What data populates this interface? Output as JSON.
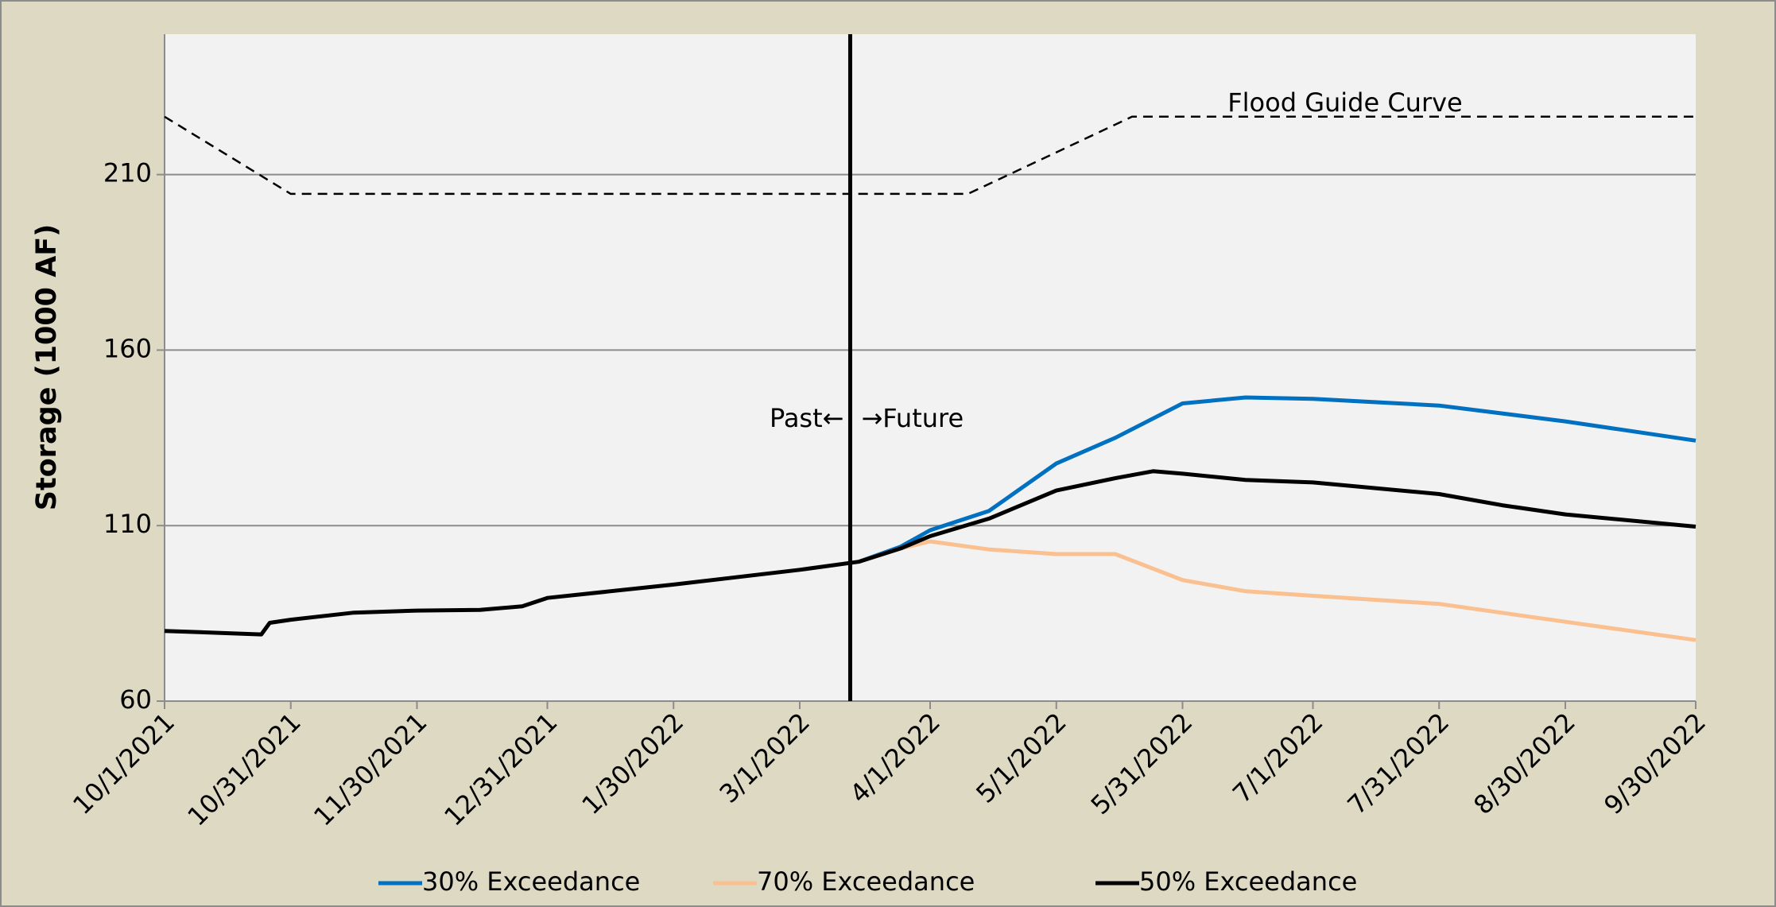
{
  "chart_data": {
    "type": "line",
    "ylabel": "Storage (1000 AF)",
    "xlim": [
      "10/1/2021",
      "9/30/2022"
    ],
    "xticks": [
      "10/1/2021",
      "10/31/2021",
      "11/30/2021",
      "12/31/2021",
      "1/30/2022",
      "3/1/2022",
      "4/1/2022",
      "5/1/2022",
      "5/31/2022",
      "7/1/2022",
      "7/31/2022",
      "8/30/2022",
      "9/30/2022"
    ],
    "ylim": [
      60,
      250
    ],
    "yticks": [
      60,
      110,
      160,
      210
    ],
    "grid": true,
    "legend": "bottom",
    "series": [
      {
        "name": "30% Exceedance",
        "color": "#0070c0",
        "x": [
          "3/15/2022",
          "3/25/2022",
          "4/1/2022",
          "4/15/2022",
          "5/1/2022",
          "5/15/2022",
          "5/31/2022",
          "6/15/2022",
          "7/1/2022",
          "7/31/2022",
          "8/30/2022",
          "9/30/2022"
        ],
        "values": [
          99.7,
          104,
          108.7,
          114.2,
          127.7,
          135,
          144.8,
          146.5,
          146.1,
          144.2,
          139.7,
          134.2
        ]
      },
      {
        "name": "70% Exceedance",
        "color": "#fac090",
        "x": [
          "3/15/2022",
          "3/25/2022",
          "4/1/2022",
          "4/15/2022",
          "5/1/2022",
          "5/15/2022",
          "5/31/2022",
          "6/15/2022",
          "7/1/2022",
          "7/31/2022",
          "8/30/2022",
          "9/30/2022"
        ],
        "values": [
          99.7,
          103.5,
          105.5,
          103.2,
          101.9,
          101.9,
          94.5,
          91.3,
          90,
          87.7,
          82.6,
          77.4
        ]
      },
      {
        "name": "50% Exceedance",
        "color": "#000000",
        "x": [
          "10/1/2021",
          "10/24/2021",
          "10/26/2021",
          "10/31/2021",
          "11/15/2021",
          "11/30/2021",
          "12/15/2021",
          "12/25/2021",
          "12/31/2021",
          "1/30/2022",
          "3/1/2022",
          "3/15/2022",
          "3/25/2022",
          "4/1/2022",
          "4/15/2022",
          "5/1/2022",
          "5/15/2022",
          "5/24/2022",
          "5/31/2022",
          "6/15/2022",
          "7/1/2022",
          "7/31/2022",
          "8/15/2022",
          "8/30/2022",
          "9/30/2022"
        ],
        "values": [
          80,
          79,
          82.3,
          83.2,
          85.2,
          85.8,
          86,
          87,
          89.4,
          93.2,
          97.4,
          99.7,
          103.5,
          107,
          112,
          120,
          123.5,
          125.5,
          124.8,
          123,
          122.3,
          119,
          115.8,
          113.2,
          109.7
        ]
      }
    ],
    "guide_curve": {
      "name": "Flood Guide Curve",
      "color": "#000000",
      "x": [
        "10/1/2021",
        "10/31/2021",
        "4/10/2022",
        "5/19/2022",
        "9/30/2022"
      ],
      "values": [
        226.5,
        204.5,
        204.5,
        226.5,
        226.5
      ]
    },
    "divider": {
      "x": "3/13/2022",
      "left_label": "Past←",
      "right_label": "→Future"
    }
  }
}
